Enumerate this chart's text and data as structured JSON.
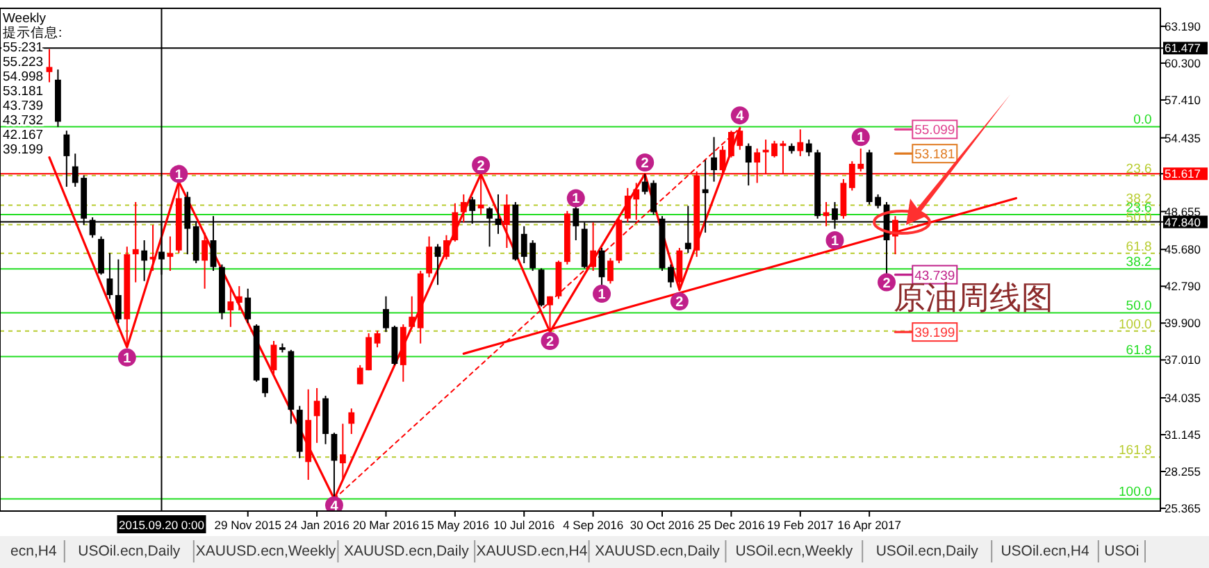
{
  "chart_data": {
    "type": "candlestick",
    "title": "原油周线图",
    "annotations": [
      "Weekly\n提示信息:\n55.231\n55.223\n54.998\n53.181\n43.739\n43.732\n42.167\n39.199",
      "ecn,H4",
      "USOil.ecn,Daily",
      "XAUUSD.ecn,Weekly",
      "XAUUSD.ecn,Daily",
      "XAUUSD.ecn,H4",
      "XAUUSD.ecn,Daily",
      "USOil.ecn,Weekly",
      "USOil.ecn,Daily",
      "USOil.ecn,H4",
      "USOi",
      {
        "text": "1",
        "x": "2015-08-23",
        "y": 37.2
      },
      {
        "text": "1",
        "x": "2015-10-04",
        "y": 51.6
      },
      {
        "text": "4",
        "x": "2016-02-07",
        "y": 25.6
      },
      {
        "text": "2",
        "x": "2016-06-05",
        "y": 52.3
      },
      {
        "text": "2",
        "x": "2016-07-31",
        "y": 38.5
      },
      {
        "text": "1",
        "x": "2016-08-21",
        "y": 49.7
      },
      {
        "text": "1",
        "x": "2016-09-11",
        "y": 42.2
      },
      {
        "text": "2",
        "x": "2016-10-16",
        "y": 52.5
      },
      {
        "text": "2",
        "x": "2016-11-13",
        "y": 41.6
      },
      {
        "text": "4",
        "x": "2017-01-01",
        "y": 56.2
      },
      {
        "text": "1",
        "x": "2017-03-19",
        "y": 46.4
      },
      {
        "text": "1",
        "x": "2017-04-09",
        "y": 54.5
      },
      {
        "text": "2",
        "x": "2017-04-30",
        "y": 43.1
      },
      {
        "text": "55.099",
        "x": "2017-05-21",
        "y": 55.1
      },
      {
        "text": "53.181",
        "x": "2017-05-21",
        "y": 53.2
      },
      {
        "text": "43.739",
        "x": "2017-05-21",
        "y": 43.7
      },
      {
        "text": "39.199",
        "x": "2017-05-21",
        "y": 39.2
      },
      {
        "text": "0.0",
        "x": "2017-12-01",
        "y": 55.31
      },
      {
        "text": "23.6",
        "x": "2017-12-01",
        "y": 48.42
      },
      {
        "text": "38.2",
        "x": "2017-12-01",
        "y": 44.15
      },
      {
        "text": "50.0",
        "x": "2017-12-01",
        "y": 40.71
      },
      {
        "text": "61.8",
        "x": "2017-12-01",
        "y": 37.27
      },
      {
        "text": "100.0",
        "x": "2017-12-01",
        "y": 26.11
      },
      {
        "text": "23.6",
        "x": "2017-12-01",
        "y": 51.48
      },
      {
        "text": "38.2",
        "x": "2017-12-01",
        "y": 49.15
      },
      {
        "text": "50.0",
        "x": "2017-12-01",
        "y": 47.63
      },
      {
        "text": "61.8",
        "x": "2017-12-01",
        "y": 45.38
      },
      {
        "text": "100.0",
        "x": "2017-12-01",
        "y": 39.28
      },
      {
        "text": "161.8",
        "x": "2017-12-01",
        "y": 29.38
      }
    ],
    "x": [
      "2015-06-21",
      "2015-06-28",
      "2015-07-05",
      "2015-07-12",
      "2015-07-19",
      "2015-07-26",
      "2015-08-02",
      "2015-08-09",
      "2015-08-16",
      "2015-08-23",
      "2015-08-30",
      "2015-09-06",
      "2015-09-13",
      "2015-09-20",
      "2015-09-27",
      "2015-10-04",
      "2015-10-11",
      "2015-10-18",
      "2015-10-25",
      "2015-11-01",
      "2015-11-08",
      "2015-11-15",
      "2015-11-22",
      "2015-11-29",
      "2015-12-06",
      "2015-12-13",
      "2015-12-20",
      "2015-12-27",
      "2016-01-03",
      "2016-01-10",
      "2016-01-17",
      "2016-01-24",
      "2016-01-31",
      "2016-02-07",
      "2016-02-14",
      "2016-02-21",
      "2016-02-28",
      "2016-03-06",
      "2016-03-13",
      "2016-03-20",
      "2016-03-27",
      "2016-04-03",
      "2016-04-10",
      "2016-04-17",
      "2016-04-24",
      "2016-05-01",
      "2016-05-08",
      "2016-05-15",
      "2016-05-22",
      "2016-05-29",
      "2016-06-05",
      "2016-06-12",
      "2016-06-19",
      "2016-06-26",
      "2016-07-03",
      "2016-07-10",
      "2016-07-17",
      "2016-07-24",
      "2016-07-31",
      "2016-08-07",
      "2016-08-14",
      "2016-08-21",
      "2016-08-28",
      "2016-09-04",
      "2016-09-11",
      "2016-09-18",
      "2016-09-25",
      "2016-10-02",
      "2016-10-09",
      "2016-10-16",
      "2016-10-23",
      "2016-10-30",
      "2016-11-06",
      "2016-11-13",
      "2016-11-20",
      "2016-11-27",
      "2016-12-04",
      "2016-12-11",
      "2016-12-18",
      "2016-12-25",
      "2017-01-01",
      "2017-01-08",
      "2017-01-15",
      "2017-01-22",
      "2017-01-29",
      "2017-02-05",
      "2017-02-12",
      "2017-02-19",
      "2017-02-26",
      "2017-03-05",
      "2017-03-12",
      "2017-03-19",
      "2017-03-26",
      "2017-04-02",
      "2017-04-09",
      "2017-04-16",
      "2017-04-23",
      "2017-04-30",
      "2017-05-07"
    ],
    "ohlc": [
      [
        59.6,
        61.4,
        58.8,
        60.0
      ],
      [
        59.0,
        59.8,
        55.3,
        55.7
      ],
      [
        54.7,
        55.0,
        50.6,
        53.0
      ],
      [
        52.2,
        53.2,
        50.6,
        50.9
      ],
      [
        51.3,
        51.5,
        47.6,
        48.1
      ],
      [
        48.0,
        48.2,
        46.6,
        46.8
      ],
      [
        46.5,
        46.7,
        43.7,
        43.8
      ],
      [
        43.4,
        45.4,
        41.8,
        42.1
      ],
      [
        42.1,
        44.9,
        39.9,
        40.2
      ],
      [
        40.2,
        45.9,
        38.0,
        45.3
      ],
      [
        45.3,
        49.4,
        43.1,
        45.7
      ],
      [
        45.6,
        46.4,
        43.2,
        44.8
      ],
      [
        44.9,
        47.6,
        44.0,
        45.1
      ],
      [
        45.5,
        47.8,
        43.7,
        44.9
      ],
      [
        45.1,
        46.7,
        44.0,
        45.4
      ],
      [
        45.6,
        51.0,
        45.4,
        49.7
      ],
      [
        49.8,
        50.2,
        45.3,
        47.3
      ],
      [
        47.5,
        47.8,
        44.6,
        44.8
      ],
      [
        44.8,
        47.0,
        42.6,
        46.4
      ],
      [
        46.4,
        48.3,
        44.0,
        44.3
      ],
      [
        44.3,
        44.5,
        40.2,
        40.7
      ],
      [
        40.9,
        42.8,
        39.6,
        41.6
      ],
      [
        41.5,
        42.8,
        40.9,
        42.0
      ],
      [
        41.9,
        42.6,
        39.9,
        40.2
      ],
      [
        39.7,
        39.8,
        35.3,
        35.4
      ],
      [
        35.6,
        35.6,
        34.1,
        34.4
      ],
      [
        36.2,
        38.5,
        35.9,
        38.2
      ],
      [
        38.0,
        38.3,
        37.6,
        37.8
      ],
      [
        37.7,
        37.8,
        32.0,
        33.1
      ],
      [
        33.1,
        33.4,
        29.3,
        29.8
      ],
      [
        29.0,
        34.7,
        27.6,
        32.3
      ],
      [
        32.6,
        34.8,
        30.5,
        33.8
      ],
      [
        34.0,
        34.2,
        30.4,
        31.2
      ],
      [
        31.2,
        31.3,
        26.1,
        29.1
      ],
      [
        28.9,
        32.0,
        27.6,
        29.6
      ],
      [
        32.0,
        33.2,
        31.2,
        32.9
      ],
      [
        35.1,
        36.6,
        35.1,
        36.4
      ],
      [
        36.2,
        39.1,
        36.2,
        38.8
      ],
      [
        38.3,
        39.3,
        38.0,
        39.1
      ],
      [
        41.0,
        42.0,
        39.2,
        39.5
      ],
      [
        39.6,
        39.7,
        36.6,
        36.7
      ],
      [
        36.6,
        39.8,
        35.3,
        39.6
      ],
      [
        39.6,
        42.0,
        39.5,
        40.4
      ],
      [
        39.5,
        44.0,
        38.3,
        43.8
      ],
      [
        43.8,
        46.7,
        43.5,
        45.9
      ],
      [
        45.9,
        46.1,
        42.9,
        45.1
      ],
      [
        45.1,
        46.8,
        44.9,
        46.4
      ],
      [
        46.4,
        49.3,
        46.3,
        48.6
      ],
      [
        48.6,
        50.0,
        47.8,
        49.4
      ],
      [
        49.6,
        49.8,
        47.7,
        48.7
      ],
      [
        48.9,
        51.6,
        48.4,
        49.2
      ],
      [
        48.9,
        49.0,
        45.9,
        48.1
      ],
      [
        48.1,
        50.0,
        46.9,
        47.6
      ],
      [
        47.6,
        50.0,
        45.8,
        49.2
      ],
      [
        49.2,
        49.4,
        44.8,
        44.9
      ],
      [
        46.9,
        47.5,
        44.6,
        45.1
      ],
      [
        46.2,
        46.4,
        44.0,
        44.2
      ],
      [
        44.1,
        44.2,
        41.2,
        41.3
      ],
      [
        41.3,
        42.0,
        39.2,
        42.0
      ],
      [
        42.0,
        44.8,
        41.8,
        44.7
      ],
      [
        44.7,
        48.7,
        44.5,
        48.5
      ],
      [
        48.9,
        49.1,
        46.4,
        47.5
      ],
      [
        47.3,
        47.8,
        44.2,
        44.3
      ],
      [
        44.3,
        47.8,
        44.0,
        45.6
      ],
      [
        45.6,
        45.8,
        42.7,
        43.5
      ],
      [
        43.2,
        45.0,
        43.0,
        44.8
      ],
      [
        44.8,
        48.1,
        44.6,
        48.0
      ],
      [
        48.1,
        50.5,
        47.8,
        49.9
      ],
      [
        49.6,
        50.9,
        48.0,
        50.4
      ],
      [
        51.0,
        51.6,
        50.0,
        50.2
      ],
      [
        50.9,
        51.1,
        48.4,
        48.6
      ],
      [
        48.1,
        48.3,
        44.0,
        44.2
      ],
      [
        44.3,
        44.5,
        42.7,
        43.1
      ],
      [
        43.1,
        45.8,
        42.5,
        45.6
      ],
      [
        46.2,
        49.1,
        45.4,
        45.7
      ],
      [
        45.6,
        51.8,
        45.1,
        51.5
      ],
      [
        50.4,
        52.7,
        47.0,
        50.1
      ],
      [
        52.9,
        54.5,
        51.0,
        51.9
      ],
      [
        51.9,
        53.8,
        51.6,
        53.5
      ],
      [
        53.0,
        55.0,
        52.9,
        54.9
      ],
      [
        53.8,
        55.2,
        53.5,
        55.0
      ],
      [
        53.8,
        54.0,
        50.7,
        52.5
      ],
      [
        52.5,
        53.6,
        50.9,
        53.3
      ],
      [
        53.3,
        54.3,
        51.6,
        53.5
      ],
      [
        53.0,
        54.2,
        52.9,
        54.0
      ],
      [
        53.8,
        54.2,
        51.6,
        54.0
      ],
      [
        53.8,
        54.0,
        53.2,
        53.4
      ],
      [
        53.4,
        55.1,
        53.0,
        54.1
      ],
      [
        54.0,
        54.3,
        53.0,
        53.3
      ],
      [
        53.3,
        53.5,
        48.1,
        48.3
      ],
      [
        48.3,
        49.4,
        47.5,
        48.6
      ],
      [
        48.9,
        49.4,
        47.3,
        48.0
      ],
      [
        48.3,
        51.2,
        48.1,
        50.9
      ],
      [
        50.5,
        52.6,
        50.3,
        52.4
      ],
      [
        52.0,
        53.6,
        51.8,
        52.4
      ],
      [
        53.3,
        53.5,
        49.2,
        49.4
      ],
      [
        49.8,
        50.0,
        48.9,
        49.1
      ],
      [
        49.2,
        49.4,
        43.7,
        46.4
      ],
      [
        46.7,
        48.3,
        45.3,
        48.0
      ]
    ],
    "colors": [
      "#ff0000",
      "#000000",
      "#000000",
      "#000000",
      "#000000",
      "#000000",
      "#000000",
      "#000000",
      "#000000",
      "#ff0000",
      "#ff0000",
      "#000000",
      "#ff0000",
      "#000000",
      "#ff0000",
      "#ff0000",
      "#000000",
      "#000000",
      "#ff0000",
      "#000000",
      "#000000",
      "#ff0000",
      "#ff0000",
      "#000000",
      "#000000",
      "#000000",
      "#ff0000",
      "#000000",
      "#000000",
      "#000000",
      "#ff0000",
      "#ff0000",
      "#000000",
      "#000000",
      "#ff0000",
      "#ff0000",
      "#ff0000",
      "#ff0000",
      "#ff0000",
      "#000000",
      "#000000",
      "#ff0000",
      "#ff0000",
      "#ff0000",
      "#ff0000",
      "#000000",
      "#ff0000",
      "#ff0000",
      "#ff0000",
      "#000000",
      "#ff0000",
      "#000000",
      "#000000",
      "#ff0000",
      "#000000",
      "#000000",
      "#000000",
      "#000000",
      "#ff0000",
      "#ff0000",
      "#ff0000",
      "#000000",
      "#000000",
      "#ff0000",
      "#000000",
      "#ff0000",
      "#ff0000",
      "#ff0000",
      "#ff0000",
      "#000000",
      "#000000",
      "#000000",
      "#000000",
      "#ff0000",
      "#000000",
      "#ff0000",
      "#000000",
      "#000000",
      "#ff0000",
      "#ff0000",
      "#ff0000",
      "#000000",
      "#ff0000",
      "#ff0000",
      "#ff0000",
      "#ff0000",
      "#000000",
      "#ff0000",
      "#000000",
      "#000000",
      "#ff0000",
      "#000000",
      "#ff0000",
      "#ff0000",
      "#ff0000",
      "#000000",
      "#000000",
      "#000000",
      "#ff0000"
    ],
    "series": [
      {
        "type": "line",
        "color": "#ff0000",
        "x": [
          "2015-06-21",
          "2015-08-23",
          "2015-10-04",
          "2016-02-07",
          "2016-06-05",
          "2016-07-31",
          "2016-10-16",
          "2016-11-13",
          "2017-01-01"
        ],
        "values": [
          52.9,
          38.0,
          51.0,
          26.1,
          51.6,
          39.2,
          51.6,
          42.5,
          55.2
        ]
      },
      {
        "type": "line",
        "color": "#ff0000",
        "line_style": "dashed",
        "x": [
          "2016-02-07",
          "2017-01-01"
        ],
        "values": [
          26.1,
          55.2
        ]
      },
      {
        "type": "line",
        "color": "#ff0000",
        "x": [
          "2016-05-22",
          "2017-08-13"
        ],
        "values": [
          37.5,
          49.7
        ]
      },
      {
        "type": "line",
        "color": "#e0408f",
        "x": [
          "2017-05-07",
          "2017-05-21"
        ],
        "values": [
          55.1,
          55.1
        ]
      },
      {
        "type": "line",
        "color": "#e07a20",
        "x": [
          "2017-05-07",
          "2017-05-21"
        ],
        "values": [
          53.2,
          53.2
        ]
      },
      {
        "type": "line",
        "color": "#c0208a",
        "x": [
          "2017-05-07",
          "2017-05-21"
        ],
        "values": [
          43.7,
          43.7
        ]
      },
      {
        "type": "line",
        "color": "#ff3030",
        "x": [
          "2017-05-07",
          "2017-05-21"
        ],
        "values": [
          39.2,
          39.2
        ]
      }
    ],
    "xlim": [
      "2015-05-12",
      "2017-12-08"
    ],
    "ylim": [
      25.15,
      64.6
    ],
    "xticks": [
      {
        "value": "2015-11-29",
        "label": "29 Nov 2015"
      },
      {
        "value": "2016-01-24",
        "label": "24 Jan 2016"
      },
      {
        "value": "2016-03-20",
        "label": "20 Mar 2016"
      },
      {
        "value": "2016-05-15",
        "label": "15 May 2016"
      },
      {
        "value": "2016-07-10",
        "label": "10 Jul 2016"
      },
      {
        "value": "2016-09-04",
        "label": "4 Sep 2016"
      },
      {
        "value": "2016-10-30",
        "label": "30 Oct 2016"
      },
      {
        "value": "2016-12-25",
        "label": "25 Dec 2016"
      },
      {
        "value": "2017-02-19",
        "label": "19 Feb 2017"
      },
      {
        "value": "2017-04-16",
        "label": "16 Apr 2017"
      }
    ],
    "yticks": [
      {
        "value": 63.19,
        "label": "63.190"
      },
      {
        "value": 61.477,
        "label": "61.477"
      },
      {
        "value": 60.3,
        "label": "60.300"
      },
      {
        "value": 57.41,
        "label": "57.410"
      },
      {
        "value": 54.435,
        "label": "54.435"
      },
      {
        "value": 51.617,
        "label": "51.617"
      },
      {
        "value": 48.655,
        "label": "48.655"
      },
      {
        "value": 47.84,
        "label": "47.840"
      },
      {
        "value": 45.68,
        "label": "45.680"
      },
      {
        "value": 42.79,
        "label": "42.790"
      },
      {
        "value": 39.9,
        "label": "39.900"
      },
      {
        "value": 37.01,
        "label": "37.010"
      },
      {
        "value": 34.035,
        "label": "34.035"
      },
      {
        "value": 31.145,
        "label": "31.145"
      },
      {
        "value": 28.255,
        "label": "28.255"
      },
      {
        "value": 25.365,
        "label": "25.365"
      }
    ],
    "ref_lines": [
      {
        "axis": "x",
        "value": "2015-09-20",
        "label": "2015.09.20 0:00",
        "color": "#000000"
      },
      {
        "axis": "y",
        "value": 61.477,
        "color": "#000000"
      },
      {
        "axis": "y",
        "value": 51.617,
        "color": "#ff0000"
      },
      {
        "axis": "y",
        "value": 47.84,
        "color": "#000000"
      },
      {
        "axis": "y",
        "value": 55.31,
        "color": "#22dd22"
      },
      {
        "axis": "y",
        "value": 48.42,
        "color": "#22dd22"
      },
      {
        "axis": "y",
        "value": 44.15,
        "color": "#22dd22"
      },
      {
        "axis": "y",
        "value": 40.71,
        "color": "#22dd22"
      },
      {
        "axis": "y",
        "value": 37.27,
        "color": "#22dd22"
      },
      {
        "axis": "y",
        "value": 26.11,
        "color": "#22dd22"
      },
      {
        "axis": "y",
        "value": 51.48,
        "color": "#b8cc30",
        "line_style": "dashed"
      },
      {
        "axis": "y",
        "value": 49.15,
        "color": "#b8cc30",
        "line_style": "dashed"
      },
      {
        "axis": "y",
        "value": 47.63,
        "color": "#b8cc30",
        "line_style": "dashed"
      },
      {
        "axis": "y",
        "value": 45.38,
        "color": "#b8cc30",
        "line_style": "dashed"
      },
      {
        "axis": "y",
        "value": 39.28,
        "color": "#b8cc30",
        "line_style": "dashed"
      },
      {
        "axis": "y",
        "value": 29.38,
        "color": "#b8cc30",
        "line_style": "dashed"
      }
    ]
  }
}
